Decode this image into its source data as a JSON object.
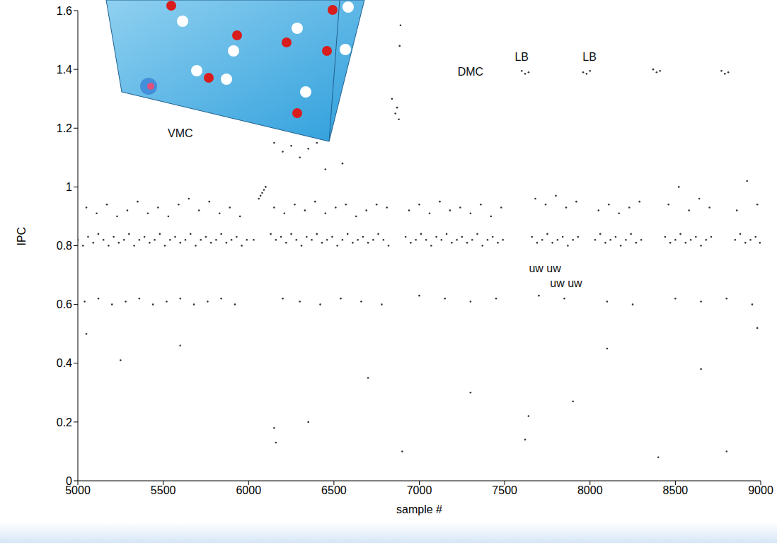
{
  "chart_data": {
    "type": "scatter",
    "x_label": "sample #",
    "y_label": "IPC",
    "color": "#333333",
    "marker": "dot",
    "xlim": [
      5000,
      9000
    ],
    "xticks": [
      5000,
      5500,
      6000,
      6500,
      7000,
      7500,
      8000,
      8500,
      9000
    ],
    "ylim": [
      0,
      1.6
    ],
    "yticks": [
      0,
      0.2,
      0.4,
      0.6,
      0.8,
      1,
      1.2,
      1.4,
      1.6
    ],
    "x": [
      5000,
      5030,
      5060,
      5090,
      5120,
      5150,
      5180,
      5210,
      5240,
      5270,
      5300,
      5330,
      5360,
      5390,
      5420,
      5450,
      5480,
      5510,
      5540,
      5570,
      5600,
      5630,
      5660,
      5690,
      5720,
      5750,
      5780,
      5810,
      5840,
      5870,
      5900,
      5930,
      5960,
      5990,
      6030,
      6060,
      6070,
      6080,
      6090,
      6100,
      6130,
      6160,
      6190,
      6220,
      6250,
      6280,
      6310,
      6340,
      6370,
      6400,
      6430,
      6460,
      6490,
      6520,
      6550,
      6580,
      6610,
      6640,
      6670,
      6700,
      6730,
      6760,
      6790,
      6820,
      6920,
      6950,
      6980,
      7010,
      7040,
      7070,
      7100,
      7130,
      7160,
      7190,
      7220,
      7250,
      7280,
      7310,
      7340,
      7370,
      7400,
      7430,
      7460,
      7490,
      7660,
      7690,
      7720,
      7750,
      7780,
      7810,
      7840,
      7870,
      7900,
      7930,
      8030,
      8060,
      8090,
      8120,
      8150,
      8180,
      8210,
      8240,
      8270,
      8300,
      8440,
      8470,
      8500,
      8530,
      8560,
      8590,
      8620,
      8650,
      8680,
      8710,
      8850,
      8880,
      8910,
      8940,
      8970,
      8995,
      5050,
      5110,
      5170,
      5230,
      5290,
      5350,
      5410,
      5470,
      5530,
      5590,
      5650,
      5710,
      5770,
      5830,
      5890,
      5950,
      6150,
      6210,
      6270,
      6330,
      6390,
      6450,
      6510,
      6570,
      6630,
      6690,
      6750,
      6810,
      6940,
      7000,
      7060,
      7120,
      7180,
      7240,
      7300,
      7360,
      7420,
      7480,
      7680,
      7740,
      7800,
      7860,
      7920,
      8050,
      8110,
      8170,
      8230,
      8290,
      8460,
      8520,
      8580,
      8640,
      8700,
      8860,
      8920,
      8980,
      6150,
      6200,
      6250,
      6300,
      6350,
      6400,
      6450,
      6550,
      6840,
      6860,
      6870,
      6880,
      6885,
      6890,
      5040,
      5120,
      5200,
      5280,
      5360,
      5440,
      5520,
      5600,
      5680,
      5760,
      5840,
      5920,
      6200,
      6300,
      6420,
      6540,
      6660,
      6780,
      7000,
      7150,
      7300,
      7450,
      7700,
      7850,
      8100,
      8250,
      8500,
      8650,
      8800,
      8950,
      5050,
      5250,
      5600,
      6150,
      6160,
      6350,
      6700,
      6900,
      7300,
      7620,
      7640,
      7900,
      8100,
      8400,
      8650,
      8800,
      8980,
      7600,
      7620,
      7640,
      7960,
      7980,
      8000,
      8370,
      8390,
      8410,
      8770,
      8790,
      8810
    ],
    "values": [
      0.82,
      0.8,
      0.83,
      0.81,
      0.84,
      0.82,
      0.8,
      0.83,
      0.81,
      0.82,
      0.84,
      0.8,
      0.82,
      0.83,
      0.81,
      0.82,
      0.84,
      0.8,
      0.82,
      0.83,
      0.81,
      0.82,
      0.84,
      0.8,
      0.82,
      0.83,
      0.81,
      0.82,
      0.84,
      0.81,
      0.82,
      0.83,
      0.8,
      0.82,
      0.82,
      0.96,
      0.97,
      0.98,
      0.99,
      1.0,
      0.84,
      0.82,
      0.83,
      0.81,
      0.84,
      0.82,
      0.8,
      0.83,
      0.82,
      0.84,
      0.81,
      0.82,
      0.83,
      0.8,
      0.82,
      0.84,
      0.81,
      0.82,
      0.83,
      0.81,
      0.82,
      0.84,
      0.82,
      0.8,
      0.83,
      0.81,
      0.82,
      0.84,
      0.82,
      0.8,
      0.83,
      0.82,
      0.84,
      0.81,
      0.82,
      0.83,
      0.81,
      0.82,
      0.84,
      0.8,
      0.82,
      0.83,
      0.81,
      0.82,
      0.83,
      0.81,
      0.82,
      0.84,
      0.81,
      0.82,
      0.83,
      0.8,
      0.82,
      0.83,
      0.82,
      0.84,
      0.81,
      0.82,
      0.83,
      0.8,
      0.82,
      0.84,
      0.81,
      0.82,
      0.83,
      0.81,
      0.82,
      0.84,
      0.81,
      0.82,
      0.83,
      0.8,
      0.82,
      0.83,
      0.82,
      0.84,
      0.81,
      0.82,
      0.83,
      0.81,
      0.93,
      0.91,
      0.94,
      0.9,
      0.92,
      0.95,
      0.91,
      0.93,
      0.9,
      0.94,
      0.96,
      0.92,
      0.95,
      0.91,
      0.93,
      0.9,
      0.93,
      0.91,
      0.94,
      0.92,
      0.95,
      0.91,
      0.93,
      0.94,
      0.9,
      0.92,
      0.94,
      0.93,
      0.92,
      0.94,
      0.91,
      0.95,
      0.92,
      0.93,
      0.91,
      0.94,
      0.9,
      0.93,
      0.96,
      0.94,
      0.97,
      0.93,
      0.95,
      0.92,
      0.94,
      0.91,
      0.93,
      0.95,
      0.94,
      1.0,
      0.92,
      0.96,
      0.93,
      0.92,
      1.02,
      0.94,
      1.15,
      1.12,
      1.14,
      1.1,
      1.13,
      1.15,
      1.06,
      1.08,
      1.3,
      1.25,
      1.27,
      1.23,
      1.48,
      1.55,
      0.61,
      0.62,
      0.6,
      0.61,
      0.62,
      0.6,
      0.61,
      0.62,
      0.6,
      0.61,
      0.62,
      0.6,
      0.62,
      0.61,
      0.6,
      0.62,
      0.61,
      0.6,
      0.63,
      0.62,
      0.61,
      0.62,
      0.63,
      0.62,
      0.61,
      0.6,
      0.62,
      0.61,
      0.62,
      0.6,
      0.5,
      0.41,
      0.46,
      0.18,
      0.13,
      0.2,
      0.35,
      0.1,
      0.3,
      0.14,
      0.22,
      0.27,
      0.45,
      0.08,
      0.38,
      0.1,
      0.52,
      1.395,
      1.385,
      1.39,
      1.39,
      1.385,
      1.395,
      1.4,
      1.39,
      1.395,
      1.395,
      1.385,
      1.39
    ],
    "annotations": [
      {
        "text": "VMC",
        "x": 5600,
        "y": 1.18
      },
      {
        "text": "DMC",
        "x": 7300,
        "y": 1.39
      },
      {
        "text": "LB",
        "x": 7600,
        "y": 1.44
      },
      {
        "text": "LB",
        "x": 7997,
        "y": 1.44
      },
      {
        "text": "uw uw",
        "x": 7736,
        "y": 0.72
      },
      {
        "text": "uw uw",
        "x": 7860,
        "y": 0.67
      }
    ]
  }
}
